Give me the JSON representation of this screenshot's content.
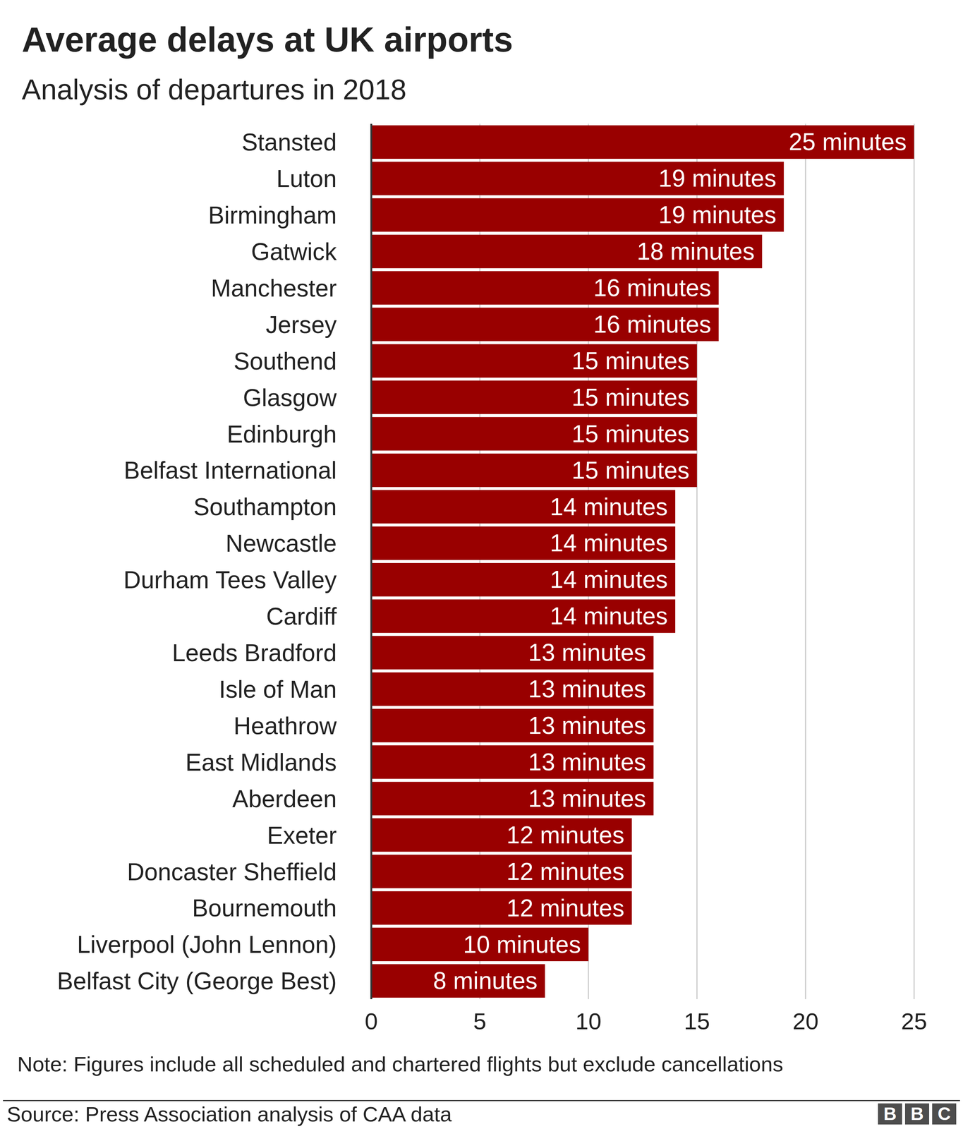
{
  "chart_data": {
    "type": "bar",
    "title": "Average delays at UK airports",
    "subtitle": "Analysis of departures in 2018",
    "categories": [
      "Stansted",
      "Luton",
      "Birmingham",
      "Gatwick",
      "Manchester",
      "Jersey",
      "Southend",
      "Glasgow",
      "Edinburgh",
      "Belfast International",
      "Southampton",
      "Newcastle",
      "Durham Tees Valley",
      "Cardiff",
      "Leeds Bradford",
      "Isle of Man",
      "Heathrow",
      "East Midlands",
      "Aberdeen",
      "Exeter",
      "Doncaster Sheffield",
      "Bournemouth",
      "Liverpool (John Lennon)",
      "Belfast City (George Best)"
    ],
    "values": [
      25,
      19,
      19,
      18,
      16,
      16,
      15,
      15,
      15,
      15,
      14,
      14,
      14,
      14,
      13,
      13,
      13,
      13,
      13,
      12,
      12,
      12,
      10,
      8
    ],
    "value_labels": [
      "25 minutes",
      "19 minutes",
      "19 minutes",
      "18 minutes",
      "16 minutes",
      "16 minutes",
      "15 minutes",
      "15 minutes",
      "15 minutes",
      "15 minutes",
      "14 minutes",
      "14 minutes",
      "14 minutes",
      "14 minutes",
      "13 minutes",
      "13 minutes",
      "13 minutes",
      "13 minutes",
      "13 minutes",
      "12 minutes",
      "12 minutes",
      "12 minutes",
      "10 minutes",
      "8 minutes"
    ],
    "color": "#990000",
    "orientation": "horizontal",
    "data_labels": true,
    "grid": true,
    "xlim": [
      0,
      25
    ],
    "xticks": [
      0,
      5,
      10,
      15,
      20,
      25
    ],
    "note": "Note: Figures include all scheduled and chartered flights but exclude cancellations",
    "source": "Source: Press Association analysis of CAA data",
    "logo": "BBC"
  }
}
